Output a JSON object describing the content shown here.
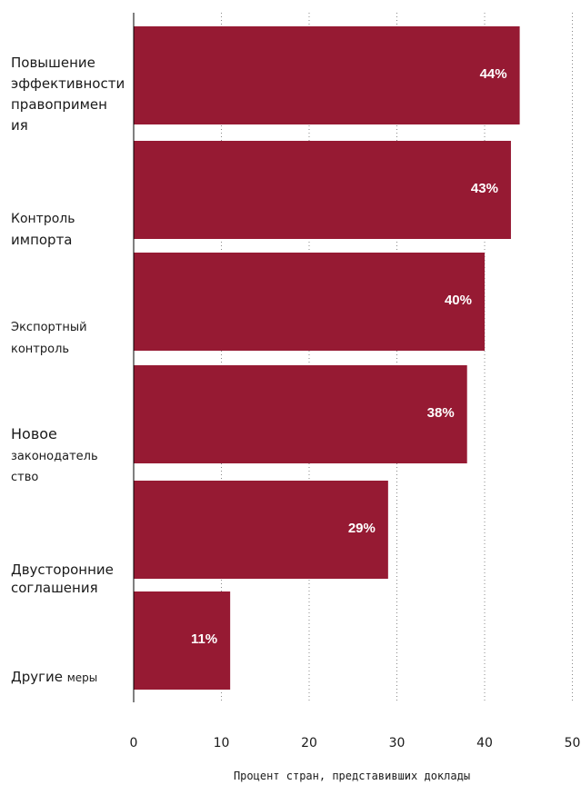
{
  "chart_data": {
    "type": "bar",
    "orientation": "horizontal",
    "categories": [
      "Повышение эффективности правоприменения",
      "Контроль импорта",
      "Экспортный контроль",
      "Новое законодательство",
      "Двусторонние соглашения",
      "Другие меры"
    ],
    "category_label_lines": [
      [
        "Повышение",
        "эффективности",
        "правопримен",
        "ия"
      ],
      [
        "Контроль",
        "импорта"
      ],
      [
        "Экспортный",
        "контроль"
      ],
      [
        "Новое",
        "законодатель",
        "ство"
      ],
      [
        "Двусторонние",
        "соглашения"
      ],
      [
        "Другие меры"
      ]
    ],
    "values": [
      44,
      43,
      40,
      38,
      29,
      11
    ],
    "data_labels": [
      "44%",
      "43%",
      "40%",
      "38%",
      "29%",
      "11%"
    ],
    "xlabel": "Процент стран, представивших доклады",
    "ylabel": "",
    "title": "",
    "xlim": [
      0,
      50
    ],
    "xticks": [
      "0",
      "10",
      "20",
      "30",
      "40",
      "50"
    ],
    "grid": "vertical-dotted",
    "colors": {
      "bar": "#961a33",
      "grid": "#888888",
      "axis": "#000000",
      "label": "#ffffff"
    }
  }
}
